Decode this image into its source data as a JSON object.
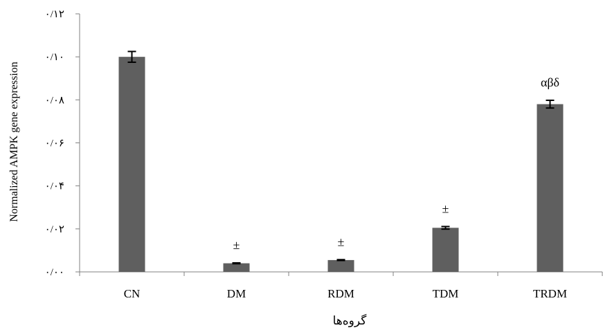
{
  "chart_data": {
    "type": "bar",
    "categories": [
      "CN",
      "DM",
      "RDM",
      "TDM",
      "TRDM"
    ],
    "values": [
      0.1,
      0.004,
      0.0055,
      0.0205,
      0.078
    ],
    "errors": [
      0.0025,
      0.0002,
      0.0002,
      0.0006,
      0.0018
    ],
    "annotations": [
      "",
      "±",
      "±",
      "±",
      "αβδ"
    ],
    "ylim": [
      0,
      0.12
    ],
    "yticks": [
      0,
      0.02,
      0.04,
      0.06,
      0.08,
      0.1,
      0.12
    ],
    "ytick_labels": [
      "۰/۰۰",
      "۰/۰۲",
      "۰/۰۴",
      "۰/۰۶",
      "۰/۰۸",
      "۰/۱۰",
      "۰/۱۲"
    ],
    "xlabel": "گروه‌ها",
    "ylabel": "Normalized AMPK gene expression",
    "title": "",
    "grid": false,
    "legend": "none",
    "bar_color": "#5f5f5f",
    "axis_color": "#808080"
  }
}
